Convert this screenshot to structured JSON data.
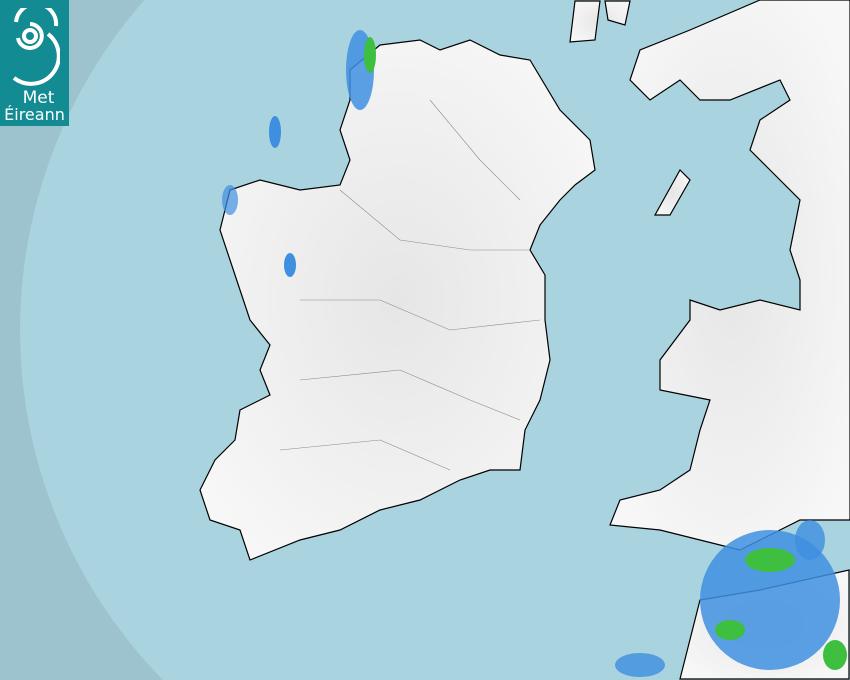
{
  "logo": {
    "line1": "Met",
    "line2": "Éireann",
    "color": "#138b92"
  },
  "map": {
    "type": "rainfall-radar",
    "colors": {
      "outside_coverage": "#9dc3cf",
      "sea": "#a9d3df",
      "land": "#f2f2f2",
      "borders": "#000000",
      "county_lines": "#8a8a8a",
      "rain_light": "#3f8fe0",
      "rain_moderate": "#3fbf3f"
    }
  }
}
